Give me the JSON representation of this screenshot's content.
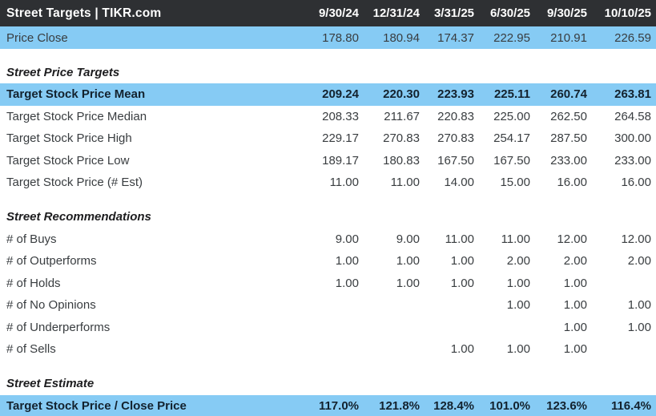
{
  "header": {
    "title": "Street Targets | TIKR.com",
    "columns": [
      "9/30/24",
      "12/31/24",
      "3/31/25",
      "6/30/25",
      "9/30/25",
      "10/10/25"
    ]
  },
  "price_close": {
    "label": "Price Close",
    "values": [
      "178.80",
      "180.94",
      "174.37",
      "222.95",
      "210.91",
      "226.59"
    ]
  },
  "sections": [
    {
      "title": "Street Price Targets",
      "rows": [
        {
          "label": "Target Stock Price Mean",
          "highlight": true,
          "values": [
            "209.24",
            "220.30",
            "223.93",
            "225.11",
            "260.74",
            "263.81"
          ]
        },
        {
          "label": "Target Stock Price Median",
          "highlight": false,
          "values": [
            "208.33",
            "211.67",
            "220.83",
            "225.00",
            "262.50",
            "264.58"
          ]
        },
        {
          "label": "Target Stock Price High",
          "highlight": false,
          "values": [
            "229.17",
            "270.83",
            "270.83",
            "254.17",
            "287.50",
            "300.00"
          ]
        },
        {
          "label": "Target Stock Price Low",
          "highlight": false,
          "values": [
            "189.17",
            "180.83",
            "167.50",
            "167.50",
            "233.00",
            "233.00"
          ]
        },
        {
          "label": "Target Stock Price (# Est)",
          "highlight": false,
          "values": [
            "11.00",
            "11.00",
            "14.00",
            "15.00",
            "16.00",
            "16.00"
          ]
        }
      ]
    },
    {
      "title": "Street Recommendations",
      "rows": [
        {
          "label": "# of Buys",
          "highlight": false,
          "values": [
            "9.00",
            "9.00",
            "11.00",
            "11.00",
            "12.00",
            "12.00"
          ]
        },
        {
          "label": "# of Outperforms",
          "highlight": false,
          "values": [
            "1.00",
            "1.00",
            "1.00",
            "2.00",
            "2.00",
            "2.00"
          ]
        },
        {
          "label": "# of Holds",
          "highlight": false,
          "values": [
            "1.00",
            "1.00",
            "1.00",
            "1.00",
            "1.00",
            ""
          ]
        },
        {
          "label": "# of No Opinions",
          "highlight": false,
          "values": [
            "",
            "",
            "",
            "1.00",
            "1.00",
            "1.00"
          ]
        },
        {
          "label": "# of Underperforms",
          "highlight": false,
          "values": [
            "",
            "",
            "",
            "",
            "1.00",
            "1.00"
          ]
        },
        {
          "label": "# of Sells",
          "highlight": false,
          "values": [
            "",
            "",
            "1.00",
            "1.00",
            "1.00",
            ""
          ]
        }
      ]
    },
    {
      "title": "Street Estimate",
      "rows": [
        {
          "label": "Target Stock Price / Close Price",
          "highlight": true,
          "values": [
            "117.0%",
            "121.8%",
            "128.4%",
            "101.0%",
            "123.6%",
            "116.4%"
          ]
        }
      ]
    }
  ],
  "colors": {
    "header_bg": "#2e3033",
    "highlight_bg": "#86cbf4",
    "text": "#393d40",
    "bold_text": "#13222e"
  }
}
